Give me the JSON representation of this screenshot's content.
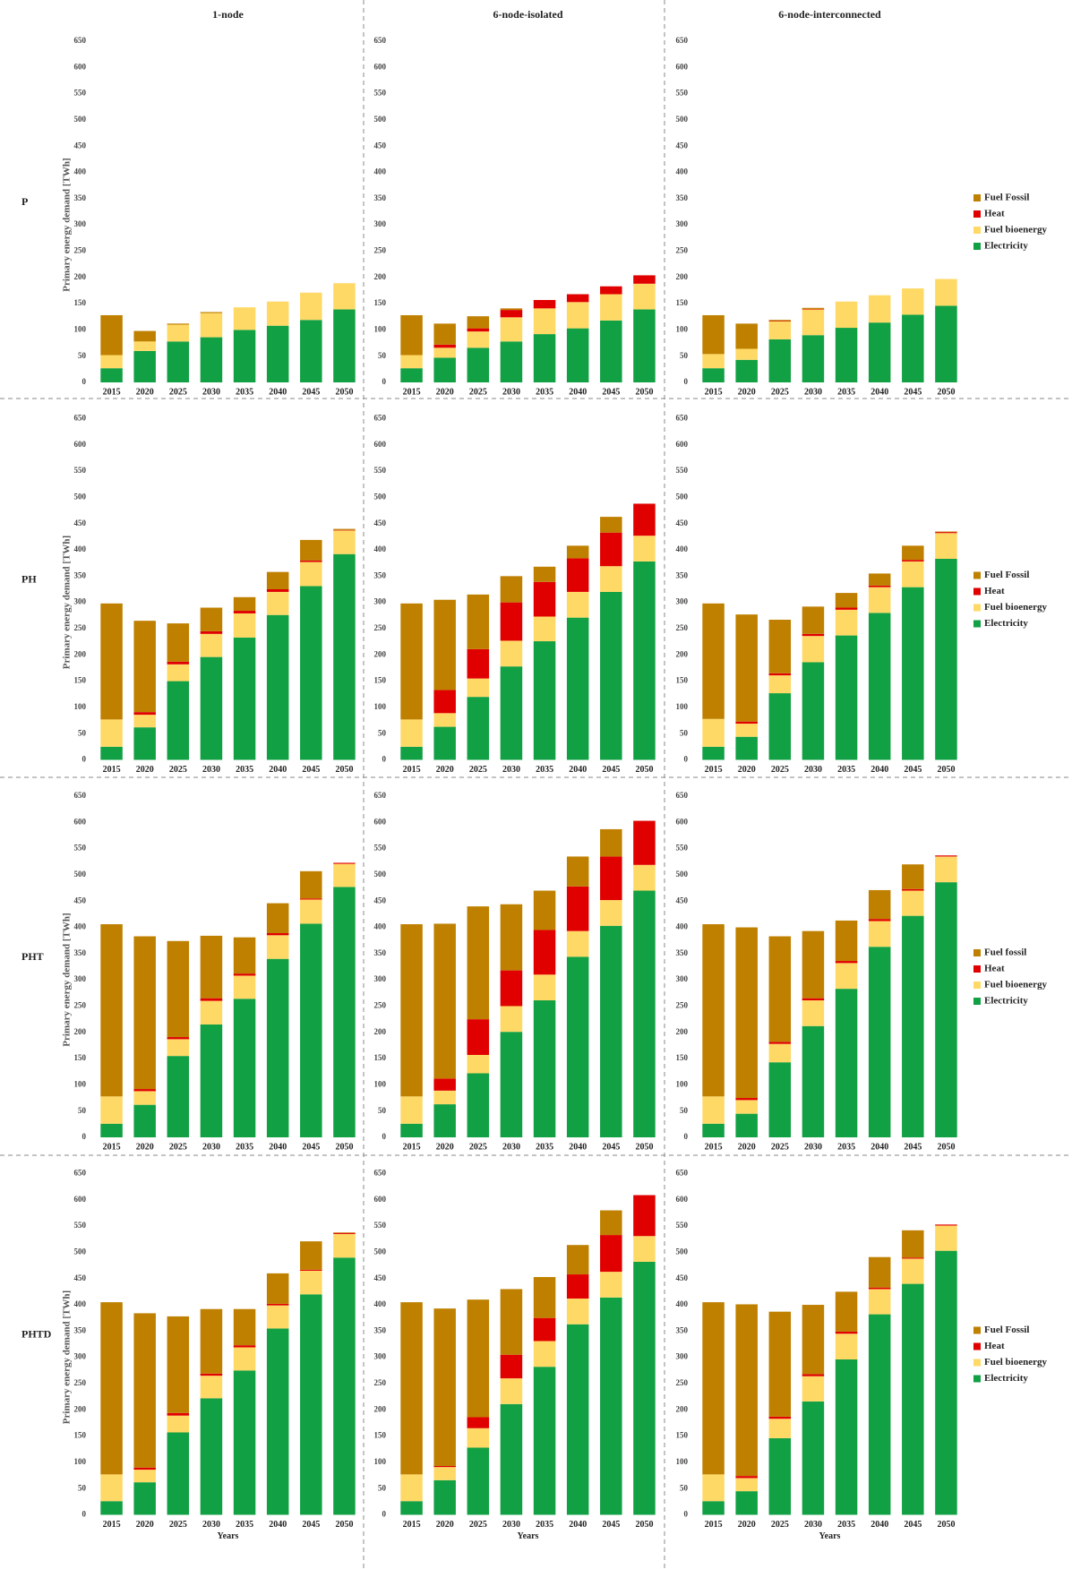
{
  "chart_data": [
    {
      "type": "bar",
      "stacked": true,
      "title": "1-node",
      "row_label": "P",
      "ylabel": "Primary energy demand [TWh]",
      "categories": [
        "2015",
        "2020",
        "2025",
        "2030",
        "2035",
        "2040",
        "2045",
        "2050"
      ],
      "ylim": [
        0,
        650
      ],
      "yticks": [
        0,
        50,
        100,
        150,
        200,
        250,
        300,
        350,
        400,
        450,
        500,
        550,
        600,
        650
      ],
      "series": [
        {
          "color": "#bf8000",
          "values": [
            76,
            20,
            2,
            2,
            0,
            0,
            0,
            0
          ]
        },
        {
          "color": "#e00000",
          "values": [
            0,
            0,
            0,
            0,
            0,
            0,
            0,
            0
          ]
        },
        {
          "color": "#ffd966",
          "values": [
            25,
            18,
            32,
            46,
            43,
            46,
            52,
            50
          ]
        },
        {
          "color": "#12a044",
          "values": [
            27,
            60,
            78,
            86,
            100,
            108,
            119,
            139
          ]
        }
      ]
    },
    {
      "type": "bar",
      "stacked": true,
      "title": "6-node-isolated",
      "categories": [
        "2015",
        "2020",
        "2025",
        "2030",
        "2035",
        "2040",
        "2045",
        "2050"
      ],
      "ylim": [
        0,
        650
      ],
      "yticks": [
        0,
        50,
        100,
        150,
        200,
        250,
        300,
        350,
        400,
        450,
        500,
        550,
        600,
        650
      ],
      "series": [
        {
          "color": "#bf8000",
          "values": [
            76,
            40,
            23,
            3,
            0,
            0,
            0,
            0
          ]
        },
        {
          "color": "#e00000",
          "values": [
            0,
            6,
            6,
            14,
            16,
            15,
            15,
            16
          ]
        },
        {
          "color": "#ffd966",
          "values": [
            25,
            19,
            31,
            46,
            49,
            50,
            50,
            49
          ]
        },
        {
          "color": "#12a044",
          "values": [
            27,
            47,
            66,
            78,
            92,
            103,
            118,
            139
          ]
        }
      ]
    },
    {
      "type": "bar",
      "stacked": true,
      "title": "6-node-interconnected",
      "legend": "right",
      "categories": [
        "2015",
        "2020",
        "2025",
        "2030",
        "2035",
        "2040",
        "2045",
        "2050"
      ],
      "ylim": [
        0,
        650
      ],
      "yticks": [
        0,
        50,
        100,
        150,
        200,
        250,
        300,
        350,
        400,
        450,
        500,
        550,
        600,
        650
      ],
      "series": [
        {
          "name": "Fuel Fossil",
          "color": "#bf8000",
          "values": [
            74,
            48,
            2,
            2,
            0,
            0,
            0,
            0
          ]
        },
        {
          "name": "Heat",
          "color": "#e00000",
          "values": [
            0,
            0,
            1,
            1,
            0,
            0,
            0,
            0
          ]
        },
        {
          "name": "Fuel bioenergy",
          "color": "#ffd966",
          "values": [
            27,
            21,
            34,
            49,
            50,
            52,
            50,
            51
          ]
        },
        {
          "name": "Electricity",
          "color": "#12a044",
          "values": [
            27,
            43,
            82,
            90,
            104,
            114,
            129,
            146
          ]
        }
      ]
    },
    {
      "type": "bar",
      "stacked": true,
      "row_label": "PH",
      "ylabel": "Primary energy demand [TWh]",
      "categories": [
        "2015",
        "2020",
        "2025",
        "2030",
        "2035",
        "2040",
        "2045",
        "2050"
      ],
      "ylim": [
        0,
        650
      ],
      "yticks": [
        0,
        50,
        100,
        150,
        200,
        250,
        300,
        350,
        400,
        450,
        500,
        550,
        600,
        650
      ],
      "series": [
        {
          "color": "#bf8000",
          "values": [
            221,
            174,
            73,
            45,
            26,
            33,
            39,
            2
          ]
        },
        {
          "color": "#e00000",
          "values": [
            0,
            5,
            5,
            5,
            5,
            5,
            3,
            1
          ]
        },
        {
          "color": "#ffd966",
          "values": [
            52,
            24,
            32,
            44,
            46,
            44,
            46,
            45
          ]
        },
        {
          "color": "#12a044",
          "values": [
            25,
            62,
            150,
            196,
            233,
            276,
            331,
            392
          ]
        }
      ]
    },
    {
      "type": "bar",
      "stacked": true,
      "categories": [
        "2015",
        "2020",
        "2025",
        "2030",
        "2035",
        "2040",
        "2045",
        "2050"
      ],
      "ylim": [
        0,
        650
      ],
      "yticks": [
        0,
        50,
        100,
        150,
        200,
        250,
        300,
        350,
        400,
        450,
        500,
        550,
        600,
        650
      ],
      "series": [
        {
          "color": "#bf8000",
          "values": [
            221,
            172,
            104,
            50,
            29,
            24,
            30,
            0
          ]
        },
        {
          "color": "#e00000",
          "values": [
            0,
            44,
            56,
            73,
            66,
            64,
            64,
            61
          ]
        },
        {
          "color": "#ffd966",
          "values": [
            52,
            26,
            35,
            49,
            47,
            49,
            49,
            49
          ]
        },
        {
          "color": "#12a044",
          "values": [
            25,
            63,
            120,
            178,
            226,
            271,
            320,
            378
          ]
        }
      ]
    },
    {
      "type": "bar",
      "stacked": true,
      "legend": "right",
      "categories": [
        "2015",
        "2020",
        "2025",
        "2030",
        "2035",
        "2040",
        "2045",
        "2050"
      ],
      "ylim": [
        0,
        650
      ],
      "yticks": [
        0,
        50,
        100,
        150,
        200,
        250,
        300,
        350,
        400,
        450,
        500,
        550,
        600,
        650
      ],
      "series": [
        {
          "name": "Fuel Fossil",
          "color": "#bf8000",
          "values": [
            220,
            204,
            102,
            52,
            28,
            23,
            27,
            1
          ]
        },
        {
          "name": "Heat",
          "color": "#e00000",
          "values": [
            0,
            4,
            4,
            4,
            4,
            3,
            3,
            2
          ]
        },
        {
          "name": "Fuel bioenergy",
          "color": "#ffd966",
          "values": [
            53,
            25,
            34,
            50,
            49,
            49,
            49,
            49
          ]
        },
        {
          "name": "Electricity",
          "color": "#12a044",
          "values": [
            25,
            44,
            127,
            186,
            237,
            280,
            329,
            383
          ]
        }
      ]
    },
    {
      "type": "bar",
      "stacked": true,
      "row_label": "PHT",
      "ylabel": "Primary energy demand [TWh]",
      "categories": [
        "2015",
        "2020",
        "2025",
        "2030",
        "2035",
        "2040",
        "2045",
        "2050"
      ],
      "ylim": [
        0,
        650
      ],
      "yticks": [
        0,
        50,
        100,
        150,
        200,
        250,
        300,
        350,
        400,
        450,
        500,
        550,
        600,
        650
      ],
      "series": [
        {
          "color": "#bf8000",
          "values": [
            328,
            291,
            183,
            119,
            69,
            57,
            52,
            0
          ]
        },
        {
          "color": "#e00000",
          "values": [
            0,
            4,
            4,
            5,
            4,
            4,
            2,
            2
          ]
        },
        {
          "color": "#ffd966",
          "values": [
            52,
            26,
            32,
            45,
            44,
            45,
            46,
            44
          ]
        },
        {
          "color": "#12a044",
          "values": [
            26,
            62,
            155,
            215,
            264,
            340,
            407,
            477
          ]
        }
      ]
    },
    {
      "type": "bar",
      "stacked": true,
      "categories": [
        "2015",
        "2020",
        "2025",
        "2030",
        "2035",
        "2040",
        "2045",
        "2050"
      ],
      "ylim": [
        0,
        650
      ],
      "yticks": [
        0,
        50,
        100,
        150,
        200,
        250,
        300,
        350,
        400,
        450,
        500,
        550,
        600,
        650
      ],
      "series": [
        {
          "color": "#bf8000",
          "values": [
            328,
            295,
            215,
            126,
            75,
            57,
            52,
            0
          ]
        },
        {
          "color": "#e00000",
          "values": [
            0,
            23,
            68,
            68,
            85,
            85,
            83,
            84
          ]
        },
        {
          "color": "#ffd966",
          "values": [
            52,
            26,
            35,
            49,
            49,
            49,
            49,
            49
          ]
        },
        {
          "color": "#12a044",
          "values": [
            26,
            63,
            122,
            201,
            261,
            344,
            403,
            470
          ]
        }
      ]
    },
    {
      "type": "bar",
      "stacked": true,
      "legend": "right",
      "categories": [
        "2015",
        "2020",
        "2025",
        "2030",
        "2035",
        "2040",
        "2045",
        "2050"
      ],
      "ylim": [
        0,
        650
      ],
      "yticks": [
        0,
        50,
        100,
        150,
        200,
        250,
        300,
        350,
        400,
        450,
        500,
        550,
        600,
        650
      ],
      "series": [
        {
          "name": "Fuel fossil",
          "color": "#bf8000",
          "values": [
            328,
            325,
            201,
            128,
            77,
            55,
            47,
            0
          ]
        },
        {
          "name": "Heat",
          "color": "#e00000",
          "values": [
            0,
            4,
            4,
            4,
            4,
            4,
            3,
            2
          ]
        },
        {
          "name": "Fuel bioenergy",
          "color": "#ffd966",
          "values": [
            52,
            26,
            35,
            49,
            49,
            49,
            48,
            49
          ]
        },
        {
          "name": "Electricity",
          "color": "#12a044",
          "values": [
            26,
            45,
            143,
            212,
            283,
            363,
            422,
            486
          ]
        }
      ]
    },
    {
      "type": "bar",
      "stacked": true,
      "row_label": "PHTD",
      "ylabel": "Primary energy demand [TWh]",
      "xlabel": "Years",
      "categories": [
        "2015",
        "2020",
        "2025",
        "2030",
        "2035",
        "2040",
        "2045",
        "2050"
      ],
      "ylim": [
        0,
        650
      ],
      "yticks": [
        0,
        50,
        100,
        150,
        200,
        250,
        300,
        350,
        400,
        450,
        500,
        550,
        600,
        650
      ],
      "series": [
        {
          "color": "#bf8000",
          "values": [
            328,
            294,
            184,
            123,
            69,
            58,
            54,
            1
          ]
        },
        {
          "color": "#e00000",
          "values": [
            0,
            4,
            5,
            4,
            4,
            3,
            2,
            2
          ]
        },
        {
          "color": "#ffd966",
          "values": [
            51,
            24,
            32,
            43,
            44,
            44,
            45,
            45
          ]
        },
        {
          "color": "#12a044",
          "values": [
            26,
            62,
            157,
            222,
            275,
            355,
            420,
            490
          ]
        }
      ]
    },
    {
      "type": "bar",
      "stacked": true,
      "xlabel": "Years",
      "categories": [
        "2015",
        "2020",
        "2025",
        "2030",
        "2035",
        "2040",
        "2045",
        "2050"
      ],
      "ylim": [
        0,
        650
      ],
      "yticks": [
        0,
        50,
        100,
        150,
        200,
        250,
        300,
        350,
        400,
        450,
        500,
        550,
        600,
        650
      ],
      "series": [
        {
          "color": "#bf8000",
          "values": [
            328,
            300,
            224,
            125,
            78,
            56,
            47,
            0
          ]
        },
        {
          "color": "#e00000",
          "values": [
            0,
            2,
            21,
            45,
            44,
            46,
            70,
            78
          ]
        },
        {
          "color": "#ffd966",
          "values": [
            51,
            25,
            37,
            49,
            49,
            49,
            49,
            49
          ]
        },
        {
          "color": "#12a044",
          "values": [
            26,
            66,
            128,
            211,
            282,
            363,
            414,
            482
          ]
        }
      ]
    },
    {
      "type": "bar",
      "stacked": true,
      "xlabel": "Years",
      "legend": "right",
      "categories": [
        "2015",
        "2020",
        "2025",
        "2030",
        "2035",
        "2040",
        "2045",
        "2050"
      ],
      "ylim": [
        0,
        650
      ],
      "yticks": [
        0,
        50,
        100,
        150,
        200,
        250,
        300,
        350,
        400,
        450,
        500,
        550,
        600,
        650
      ],
      "series": [
        {
          "name": "Fuel Fossil",
          "color": "#bf8000",
          "values": [
            328,
            327,
            200,
            132,
            76,
            58,
            52,
            0
          ]
        },
        {
          "name": "Heat",
          "color": "#e00000",
          "values": [
            0,
            4,
            4,
            4,
            4,
            3,
            2,
            2
          ]
        },
        {
          "name": "Fuel bioenergy",
          "color": "#ffd966",
          "values": [
            51,
            25,
            37,
            48,
            49,
            48,
            48,
            48
          ]
        },
        {
          "name": "Electricity",
          "color": "#12a044",
          "values": [
            26,
            45,
            146,
            216,
            296,
            382,
            440,
            503
          ]
        }
      ]
    }
  ]
}
